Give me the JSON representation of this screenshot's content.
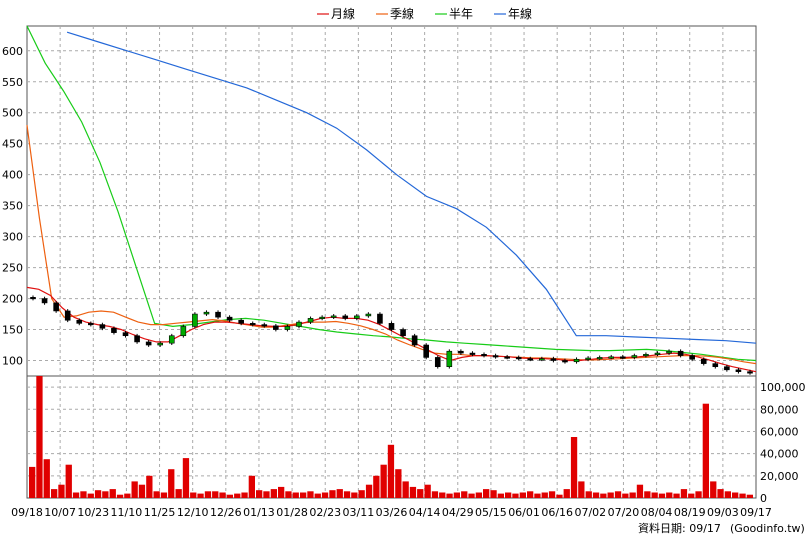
{
  "chart_data": {
    "type": "candlestick",
    "legend_position": "top-center",
    "grid": true,
    "legend": [
      {
        "name": "月線",
        "color": "#e01010"
      },
      {
        "name": "季線",
        "color": "#ee6010"
      },
      {
        "name": "半年",
        "color": "#18cc18"
      },
      {
        "name": "年線",
        "color": "#2468d8"
      }
    ],
    "x_ticks": [
      "09/18",
      "10/07",
      "10/23",
      "11/10",
      "11/25",
      "12/10",
      "12/26",
      "01/13",
      "01/28",
      "02/23",
      "03/11",
      "03/26",
      "04/14",
      "04/29",
      "05/15",
      "06/01",
      "06/16",
      "07/02",
      "07/20",
      "08/04",
      "08/19",
      "09/03",
      "09/17"
    ],
    "price_axis": {
      "ticks": [
        100,
        150,
        200,
        250,
        300,
        350,
        400,
        450,
        500,
        550,
        600
      ],
      "ylim": [
        75,
        640
      ]
    },
    "volume_axis": {
      "ticks": [
        "0",
        "20,000",
        "40,000",
        "60,000",
        "80,000",
        "100,000"
      ],
      "ylim": [
        0,
        110000
      ]
    },
    "price_close": [
      200,
      193,
      180,
      165,
      160,
      158,
      152,
      145,
      140,
      130,
      125,
      128,
      140,
      155,
      175,
      178,
      170,
      165,
      160,
      158,
      156,
      150,
      155,
      162,
      168,
      170,
      172,
      168,
      172,
      175,
      160,
      150,
      140,
      125,
      105,
      90,
      115,
      112,
      110,
      108,
      106,
      105,
      103,
      102,
      103,
      100,
      98,
      102,
      104,
      105,
      106,
      105,
      108,
      110,
      112,
      115,
      108,
      102,
      95,
      90,
      85,
      82,
      80
    ],
    "ma_month": [
      218,
      215,
      205,
      185,
      170,
      162,
      158,
      155,
      150,
      142,
      135,
      130,
      130,
      140,
      150,
      158,
      162,
      162,
      160,
      158,
      156,
      155,
      155,
      158,
      163,
      168,
      170,
      168,
      168,
      165,
      158,
      148,
      138,
      128,
      118,
      108,
      100,
      105,
      108,
      108,
      107,
      106,
      104,
      103,
      103,
      102,
      100,
      100,
      102,
      104,
      105,
      105,
      106,
      108,
      110,
      112,
      110,
      106,
      101,
      95,
      90,
      86,
      82
    ],
    "ma_quarter": [
      480,
      330,
      200,
      170,
      172,
      178,
      180,
      178,
      170,
      162,
      158,
      158,
      160,
      162,
      164,
      166,
      164,
      160,
      157,
      154,
      154,
      157,
      160,
      162,
      162,
      163,
      160,
      156,
      150,
      143,
      133,
      125,
      118,
      112,
      110,
      110,
      108,
      108,
      107,
      106,
      105,
      104,
      104,
      103,
      102,
      101,
      101,
      102,
      103,
      104,
      105,
      106,
      107,
      108,
      108,
      107,
      105,
      102,
      98,
      95
    ],
    "ma_halfyear": [
      640,
      580,
      535,
      485,
      420,
      340,
      250,
      160,
      155,
      158,
      162,
      166,
      168,
      165,
      160,
      155,
      150,
      146,
      143,
      140,
      138,
      135,
      133,
      130,
      128,
      126,
      124,
      122,
      120,
      118,
      117,
      116,
      116,
      117,
      118,
      116,
      113,
      110,
      106,
      102,
      100
    ],
    "ma_year": [
      630,
      615,
      600,
      585,
      570,
      555,
      540,
      520,
      500,
      475,
      440,
      400,
      365,
      345,
      315,
      270,
      215,
      140,
      140,
      138,
      136,
      134,
      132,
      128
    ],
    "volume": [
      28000,
      110000,
      35000,
      8000,
      12000,
      30000,
      5000,
      6000,
      4000,
      7000,
      6000,
      8000,
      3000,
      4000,
      15000,
      12000,
      20000,
      6000,
      5000,
      26000,
      8000,
      36000,
      5000,
      4000,
      6000,
      6000,
      5000,
      3000,
      4000,
      5000,
      20000,
      7000,
      6000,
      8000,
      10000,
      6000,
      5000,
      5000,
      6000,
      4000,
      5000,
      7000,
      8000,
      6000,
      5000,
      7000,
      12000,
      20000,
      30000,
      48000,
      26000,
      15000,
      10000,
      8000,
      12000,
      6000,
      5000,
      4000,
      5000,
      6000,
      4000,
      5000,
      8000,
      7000,
      4000,
      5000,
      4000,
      5000,
      6000,
      4000,
      5000,
      6000,
      3000,
      8000,
      55000,
      15000,
      6000,
      5000,
      4000,
      5000,
      6000,
      4000,
      5000,
      12000,
      6000,
      5000,
      4000,
      5000,
      4000,
      8000,
      4000,
      6000,
      85000,
      15000,
      8000,
      6000,
      5000,
      4000,
      3000
    ]
  },
  "source_label": "資料日期: 09/17",
  "site_label": "(Goodinfo.tw)",
  "colors": {
    "up": "#00aa00",
    "down": "#000000",
    "volume": "#e00000",
    "grid": "#aaaaaa",
    "frame": "#555555"
  }
}
